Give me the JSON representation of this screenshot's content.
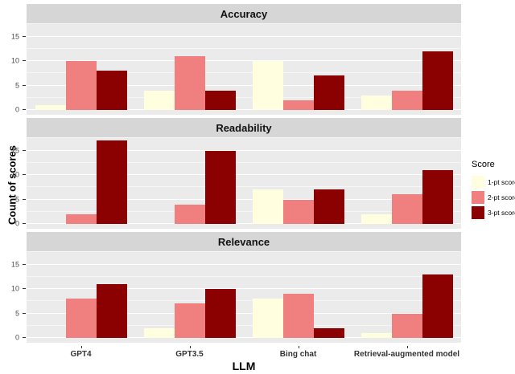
{
  "figure": {
    "y_axis_title": "Count of scores",
    "x_axis_title": "LLM",
    "legend": {
      "title": "Score",
      "items": [
        {
          "label": "1-pt score",
          "color": "#FFFFDF"
        },
        {
          "label": "2-pt score",
          "color": "#F08080"
        },
        {
          "label": "3-pt score",
          "color": "#8B0000"
        }
      ]
    },
    "colors": {
      "panel_background": "#EBEBEB",
      "strip_background": "#D6D6D6",
      "gridline": "#FFFFFF"
    }
  },
  "chart_data": {
    "type": "bar",
    "subtype": "grouped-dodged, faceted by row",
    "title": "",
    "xlabel": "LLM",
    "ylabel": "Count of scores",
    "categories": [
      "GPT4",
      "GPT3.5",
      "Bing chat",
      "Retrieval-augmented model"
    ],
    "ylim": [
      0,
      17.5
    ],
    "y_major_ticks": [
      0,
      5,
      10,
      15
    ],
    "y_minor_gridlines": [
      2.5,
      7.5,
      12.5,
      17.5
    ],
    "grid": true,
    "legend_position": "right",
    "legend_title": "Score",
    "facets": [
      {
        "title": "Accuracy",
        "series": [
          {
            "name": "1-pt score",
            "color": "#FFFFDF",
            "values": [
              1,
              4,
              10,
              3
            ]
          },
          {
            "name": "2-pt score",
            "color": "#F08080",
            "values": [
              10,
              11,
              2,
              4
            ]
          },
          {
            "name": "3-pt score",
            "color": "#8B0000",
            "values": [
              8,
              4,
              7,
              12
            ]
          }
        ]
      },
      {
        "title": "Readability",
        "series": [
          {
            "name": "1-pt score",
            "color": "#FFFFDF",
            "values": [
              0,
              0,
              7,
              2
            ]
          },
          {
            "name": "2-pt score",
            "color": "#F08080",
            "values": [
              2,
              4,
              5,
              6
            ]
          },
          {
            "name": "3-pt score",
            "color": "#8B0000",
            "values": [
              17,
              15,
              7,
              11
            ]
          }
        ]
      },
      {
        "title": "Relevance",
        "series": [
          {
            "name": "1-pt score",
            "color": "#FFFFDF",
            "values": [
              0,
              2,
              8,
              1
            ]
          },
          {
            "name": "2-pt score",
            "color": "#F08080",
            "values": [
              8,
              7,
              9,
              5
            ]
          },
          {
            "name": "3-pt score",
            "color": "#8B0000",
            "values": [
              11,
              10,
              2,
              13
            ]
          }
        ]
      }
    ]
  }
}
